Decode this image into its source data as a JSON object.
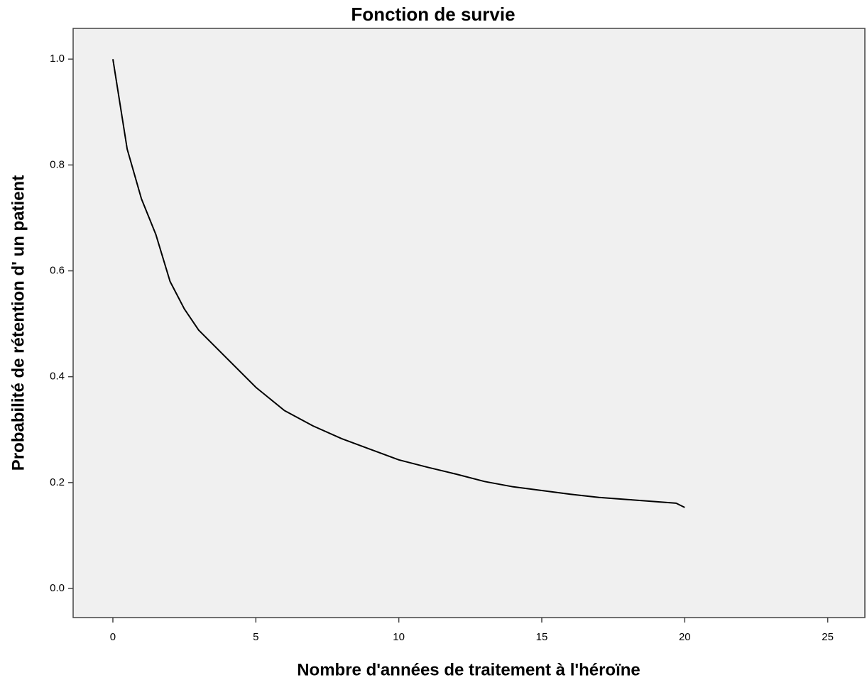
{
  "chart_data": {
    "type": "line",
    "title": "Fonction de survie",
    "x_label": "Nombre d'années de traitement à l'héroïne",
    "y_label": "Probabilité de rétention d' un patient",
    "x": [
      0,
      0.5,
      1,
      1.5,
      2,
      2.5,
      3,
      4,
      5,
      6,
      7,
      8,
      9,
      10,
      11,
      12,
      13,
      14,
      15,
      16,
      17,
      18,
      19,
      19.7,
      20
    ],
    "values": [
      1.0,
      0.83,
      0.736,
      0.669,
      0.58,
      0.528,
      0.488,
      0.434,
      0.38,
      0.336,
      0.307,
      0.283,
      0.263,
      0.243,
      0.229,
      0.216,
      0.202,
      0.192,
      0.185,
      0.178,
      0.172,
      0.168,
      0.164,
      0.161,
      0.153
    ],
    "color": "#000000",
    "xlim": [
      -1.39,
      26.3
    ],
    "xticks": [
      0,
      5,
      10,
      15,
      20,
      25
    ],
    "ylim": [
      -0.055,
      1.058
    ],
    "yticks": [
      {
        "value": 0,
        "label": "0.0"
      },
      0.2,
      0.4,
      0.6,
      0.8,
      {
        "value": 1,
        "label": "1.0"
      }
    ],
    "grid": false
  }
}
